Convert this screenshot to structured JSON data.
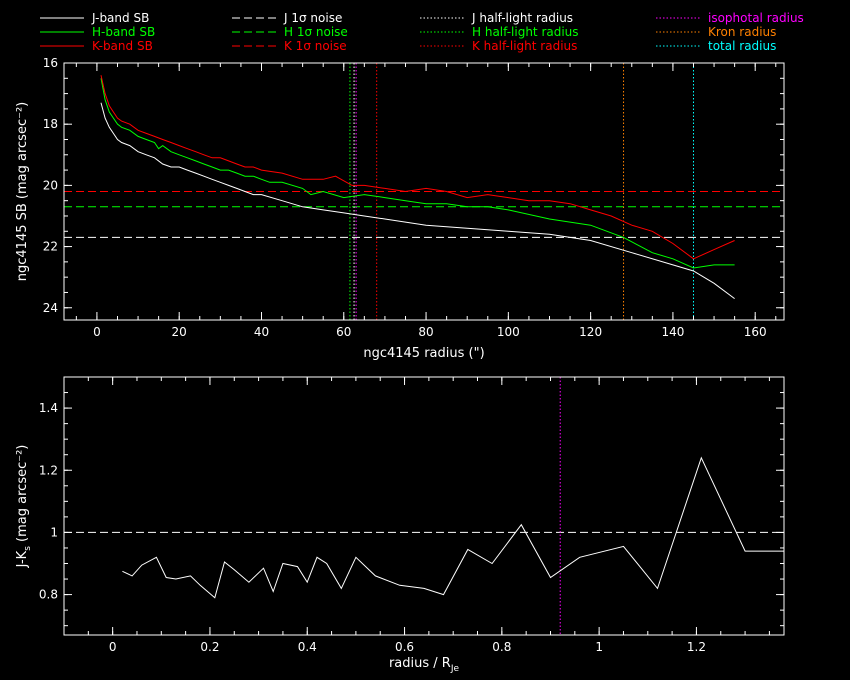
{
  "chart_data": [
    {
      "type": "line",
      "xlabel": "ngc4145 radius (\")",
      "ylabel": "ngc4145 SB (mag arcsec⁻²)",
      "xlim": [
        -8,
        167
      ],
      "ylim": [
        24.4,
        16
      ],
      "y_inverted": true,
      "xticks": [
        0,
        20,
        40,
        60,
        80,
        100,
        120,
        140,
        160
      ],
      "yticks": [
        16,
        18,
        20,
        22,
        24
      ],
      "legend_position": "top",
      "legend": [
        {
          "label": "J-band SB",
          "color": "#ffffff",
          "style": "solid"
        },
        {
          "label": "H-band SB",
          "color": "#00ff00",
          "style": "solid"
        },
        {
          "label": "K-band SB",
          "color": "#ff0000",
          "style": "solid"
        },
        {
          "label": "J 1σ noise",
          "color": "#ffffff",
          "style": "dashed"
        },
        {
          "label": "H 1σ noise",
          "color": "#00ff00",
          "style": "dashed"
        },
        {
          "label": "K 1σ noise",
          "color": "#ff0000",
          "style": "dashed"
        },
        {
          "label": "J half-light radius",
          "color": "#ffffff",
          "style": "dotted"
        },
        {
          "label": "H half-light radius",
          "color": "#00ff00",
          "style": "dotted"
        },
        {
          "label": "K half-light radius",
          "color": "#ff0000",
          "style": "dotted"
        },
        {
          "label": "isophotal radius",
          "color": "#ff00ff",
          "style": "dotted"
        },
        {
          "label": "Kron radius",
          "color": "#ff8000",
          "style": "dotted"
        },
        {
          "label": "total radius",
          "color": "#00ffff",
          "style": "dotted"
        }
      ],
      "series": [
        {
          "band": "J",
          "color": "#ffffff",
          "x": [
            1,
            2,
            3,
            4,
            5,
            6,
            8,
            10,
            12,
            14,
            16,
            18,
            20,
            22,
            24,
            26,
            28,
            30,
            32,
            34,
            36,
            38,
            40,
            45,
            50,
            55,
            60,
            65,
            70,
            75,
            80,
            85,
            90,
            95,
            100,
            110,
            120,
            130,
            140,
            145,
            150,
            155
          ],
          "y": [
            17.3,
            17.8,
            18.1,
            18.3,
            18.5,
            18.6,
            18.7,
            18.9,
            19.0,
            19.1,
            19.3,
            19.4,
            19.4,
            19.5,
            19.6,
            19.7,
            19.8,
            19.9,
            20.0,
            20.1,
            20.2,
            20.3,
            20.3,
            20.5,
            20.7,
            20.8,
            20.9,
            21.0,
            21.1,
            21.2,
            21.3,
            21.35,
            21.4,
            21.45,
            21.5,
            21.6,
            21.8,
            22.2,
            22.6,
            22.8,
            23.2,
            23.7
          ]
        },
        {
          "band": "H",
          "color": "#00ff00",
          "x": [
            1,
            2,
            3,
            4,
            5,
            6,
            8,
            10,
            12,
            14,
            15,
            16,
            18,
            20,
            22,
            24,
            26,
            28,
            30,
            32,
            34,
            36,
            38,
            40,
            42,
            45,
            50,
            52,
            55,
            60,
            65,
            70,
            75,
            80,
            85,
            90,
            95,
            100,
            110,
            120,
            128,
            135,
            140,
            145,
            150,
            155
          ],
          "y": [
            16.5,
            17.2,
            17.6,
            17.8,
            18.0,
            18.1,
            18.2,
            18.4,
            18.5,
            18.6,
            18.8,
            18.7,
            18.9,
            19.0,
            19.1,
            19.2,
            19.3,
            19.4,
            19.5,
            19.5,
            19.6,
            19.7,
            19.7,
            19.8,
            19.9,
            19.9,
            20.1,
            20.3,
            20.2,
            20.4,
            20.3,
            20.4,
            20.5,
            20.6,
            20.6,
            20.7,
            20.7,
            20.8,
            21.1,
            21.3,
            21.7,
            22.2,
            22.4,
            22.7,
            22.6,
            22.6
          ]
        },
        {
          "band": "K",
          "color": "#ff0000",
          "x": [
            1,
            2,
            3,
            4,
            5,
            6,
            8,
            10,
            12,
            14,
            16,
            18,
            20,
            22,
            24,
            26,
            28,
            30,
            32,
            34,
            36,
            38,
            40,
            45,
            50,
            55,
            58,
            62,
            65,
            70,
            75,
            80,
            85,
            90,
            95,
            100,
            105,
            110,
            115,
            120,
            125,
            130,
            135,
            140,
            145,
            150,
            155
          ],
          "y": [
            16.4,
            17.0,
            17.4,
            17.6,
            17.8,
            17.9,
            18.0,
            18.2,
            18.3,
            18.4,
            18.5,
            18.6,
            18.7,
            18.8,
            18.9,
            19.0,
            19.1,
            19.1,
            19.2,
            19.3,
            19.4,
            19.4,
            19.5,
            19.6,
            19.8,
            19.8,
            19.7,
            20.0,
            20.0,
            20.1,
            20.2,
            20.1,
            20.2,
            20.4,
            20.3,
            20.4,
            20.5,
            20.5,
            20.6,
            20.8,
            21.0,
            21.3,
            21.5,
            21.9,
            22.4,
            22.1,
            21.8
          ]
        }
      ],
      "noise_levels": [
        {
          "band": "J",
          "y": 21.7,
          "color": "#ffffff"
        },
        {
          "band": "H",
          "y": 20.7,
          "color": "#00ff00"
        },
        {
          "band": "K",
          "y": 20.2,
          "color": "#ff0000"
        }
      ],
      "radii": [
        {
          "name": "J half-light radius",
          "x": 62.5,
          "color": "#ffffff"
        },
        {
          "name": "H half-light radius",
          "x": 61.5,
          "color": "#00ff00"
        },
        {
          "name": "K half-light radius",
          "x": 68,
          "color": "#ff0000"
        },
        {
          "name": "isophotal radius",
          "x": 63,
          "color": "#ff00ff"
        },
        {
          "name": "Kron radius",
          "x": 128,
          "color": "#ff8000"
        },
        {
          "name": "total radius",
          "x": 145,
          "color": "#00ffff"
        }
      ]
    },
    {
      "type": "line",
      "xlabel": "radius / R",
      "xlabel_subscript": "Je",
      "ylabel": "J-K",
      "ylabel_subscript": "s",
      "ylabel_suffix": " (mag arcsec⁻²)",
      "xlim": [
        -0.1,
        1.38
      ],
      "ylim": [
        0.67,
        1.5
      ],
      "xticks": [
        0,
        0.2,
        0.4,
        0.6,
        0.8,
        1,
        1.2
      ],
      "xtick_labels": [
        "0",
        "0.2",
        "0.4",
        "0.6",
        "0.8",
        "1",
        "1.2"
      ],
      "yticks": [
        0.8,
        1,
        1.2,
        1.4
      ],
      "ytick_labels": [
        "0.8",
        "1",
        "1.2",
        "1.4"
      ],
      "series": [
        {
          "name": "J-Ks",
          "color": "#ffffff",
          "x": [
            0.02,
            0.04,
            0.06,
            0.09,
            0.11,
            0.13,
            0.16,
            0.18,
            0.21,
            0.23,
            0.25,
            0.28,
            0.31,
            0.33,
            0.35,
            0.38,
            0.4,
            0.42,
            0.44,
            0.47,
            0.5,
            0.54,
            0.59,
            0.64,
            0.68,
            0.73,
            0.78,
            0.84,
            0.9,
            0.96,
            1.05,
            1.12,
            1.21,
            1.3,
            1.38
          ],
          "y": [
            0.875,
            0.86,
            0.895,
            0.92,
            0.855,
            0.85,
            0.86,
            0.83,
            0.79,
            0.905,
            0.88,
            0.84,
            0.885,
            0.81,
            0.9,
            0.89,
            0.84,
            0.92,
            0.9,
            0.82,
            0.92,
            0.86,
            0.83,
            0.82,
            0.8,
            0.945,
            0.9,
            1.025,
            0.855,
            0.92,
            0.955,
            0.82,
            1.24,
            0.94,
            0.94
          ]
        }
      ],
      "reference_line": {
        "y": 1.0,
        "color": "#ffffff",
        "style": "dashed"
      },
      "marker_line": {
        "x": 0.92,
        "color": "#ff00ff",
        "style": "dotted"
      }
    }
  ]
}
